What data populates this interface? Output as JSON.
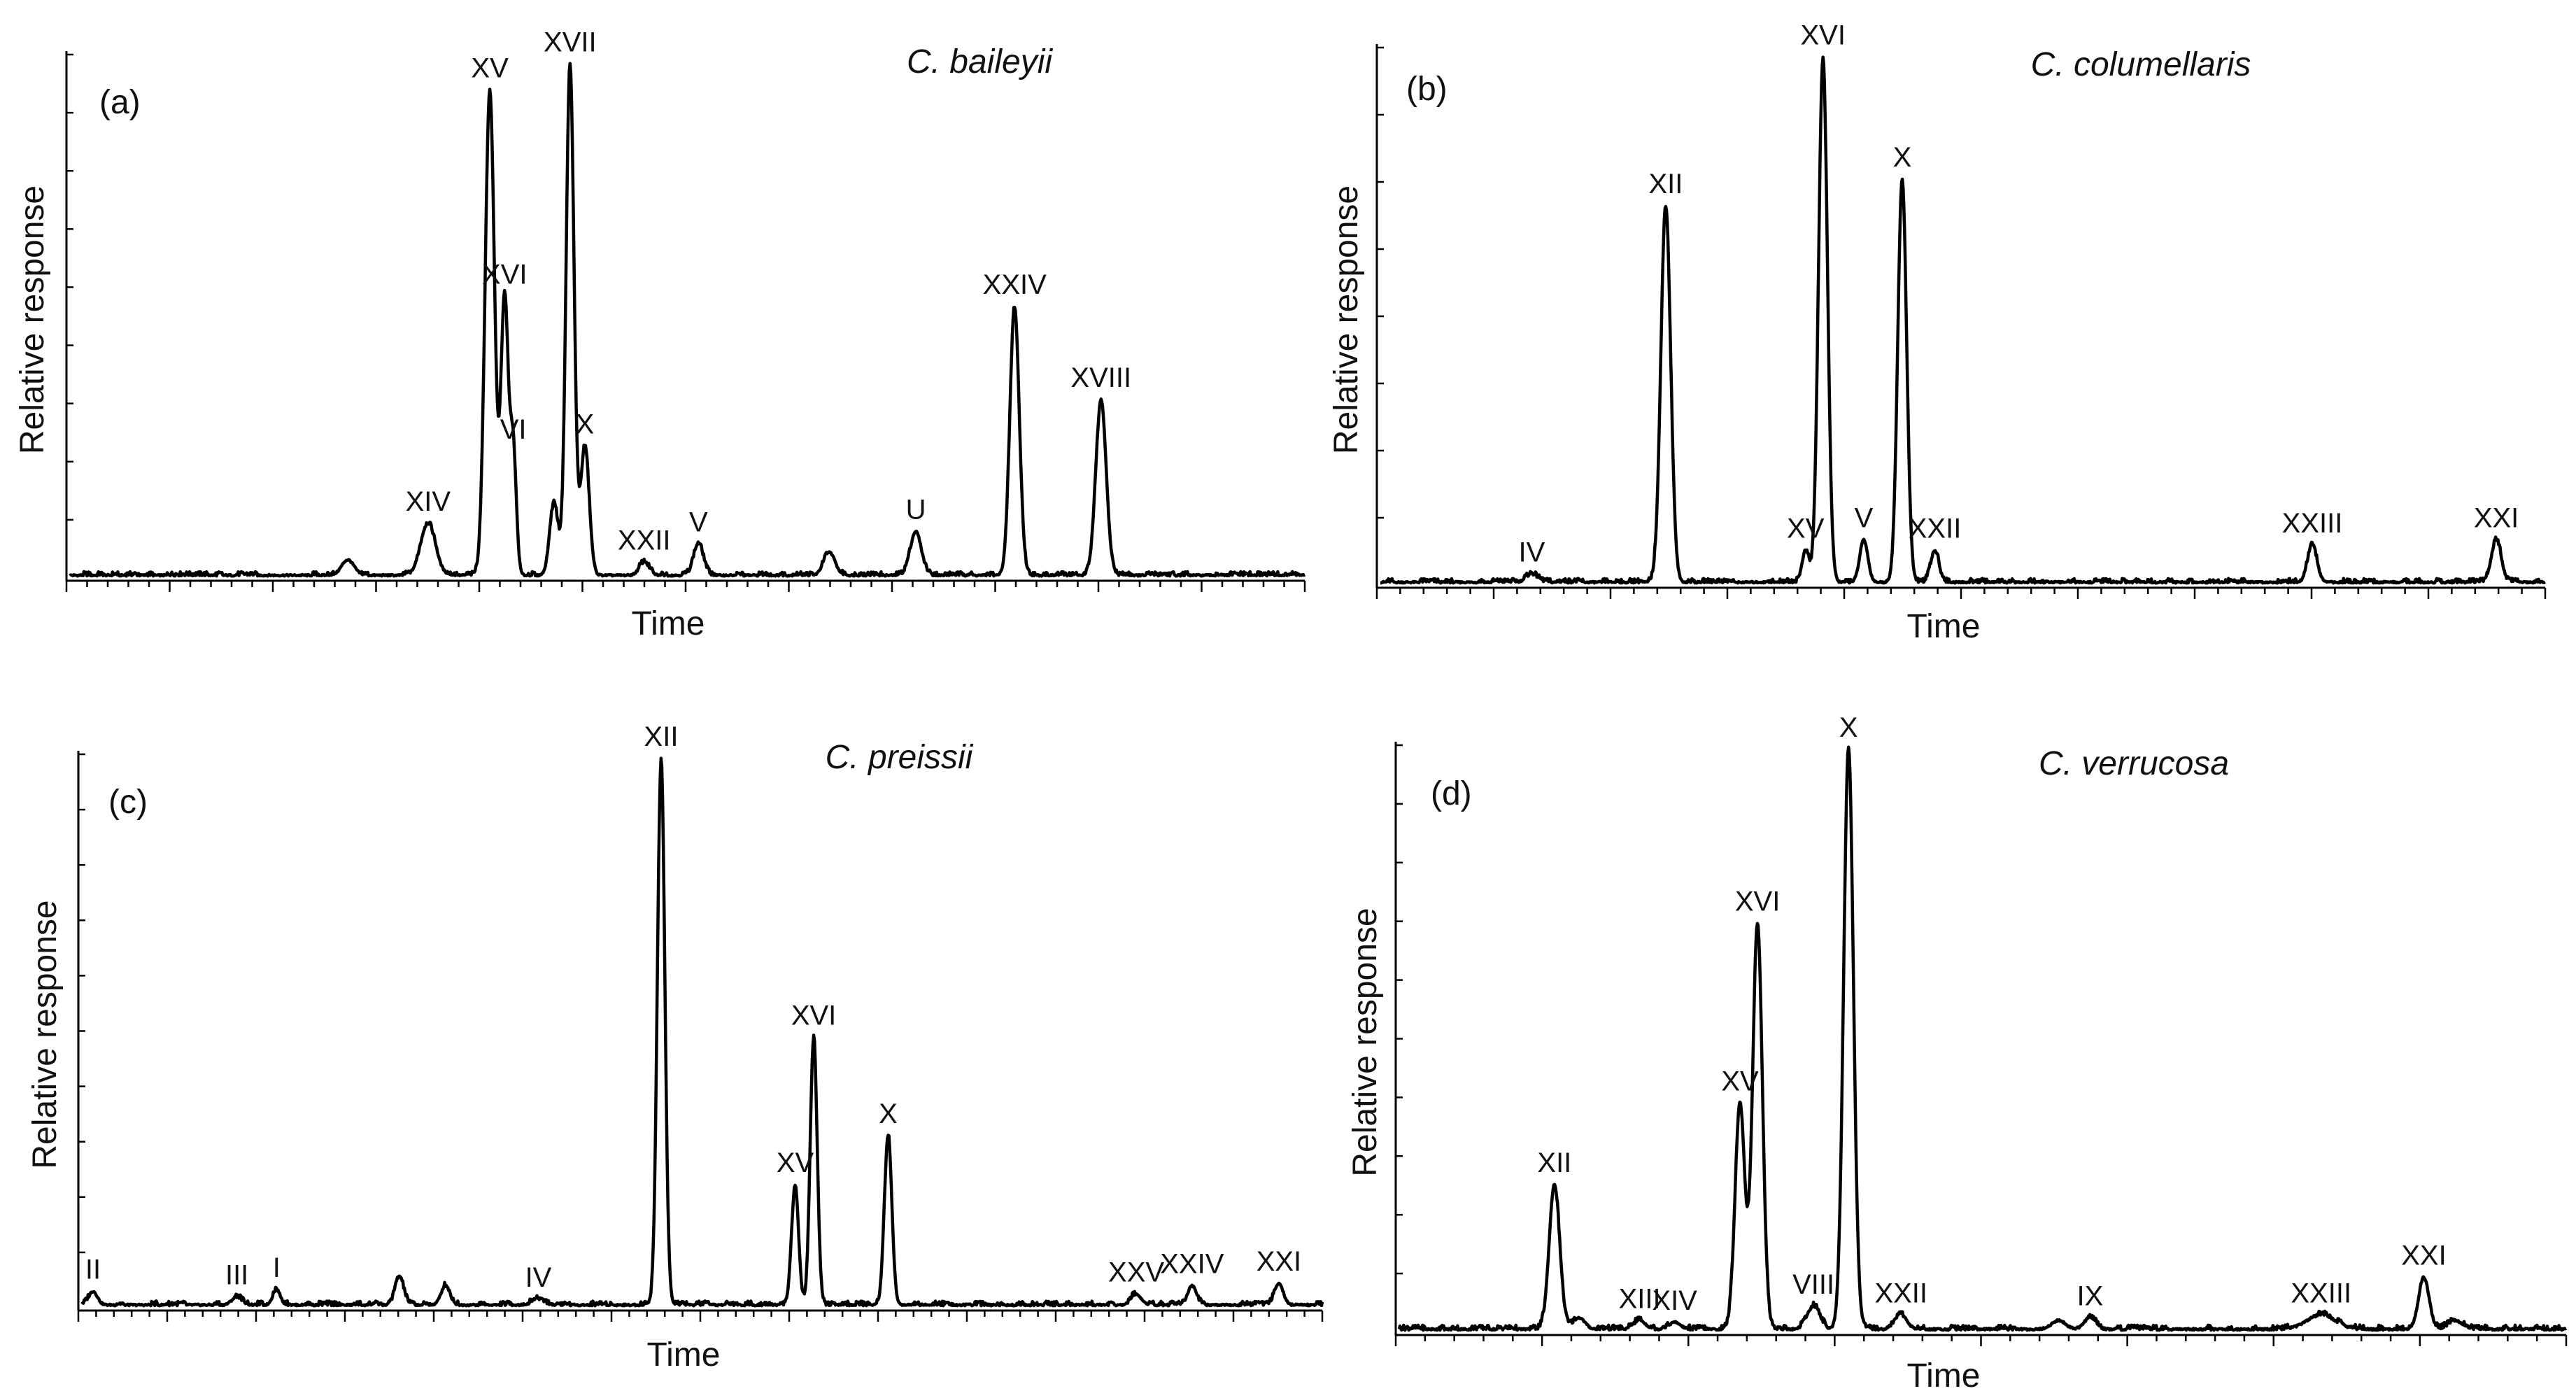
{
  "chart_data": [
    {
      "type": "line",
      "panel": "(a)",
      "title": "C. baileyii",
      "xlabel": "Time",
      "ylabel": "Relative response",
      "xlim": [
        0,
        100
      ],
      "ylim": [
        0,
        100
      ],
      "n_xticks": 60,
      "n_yticks": 9,
      "peaks": [
        {
          "x": 22.5,
          "y": 3,
          "w": 0.5,
          "label": ""
        },
        {
          "x": 29,
          "y": 10,
          "w": 0.6,
          "label": "XIV"
        },
        {
          "x": 34,
          "y": 94,
          "w": 0.38,
          "label": "XV"
        },
        {
          "x": 35.2,
          "y": 54,
          "w": 0.3,
          "label": "XVI"
        },
        {
          "x": 35.9,
          "y": 24,
          "w": 0.25,
          "label": "VI"
        },
        {
          "x": 39.2,
          "y": 14,
          "w": 0.35,
          "label": ""
        },
        {
          "x": 40.5,
          "y": 99,
          "w": 0.32,
          "label": "XVII"
        },
        {
          "x": 41.7,
          "y": 25,
          "w": 0.35,
          "label": "X"
        },
        {
          "x": 46.5,
          "y": 2.5,
          "w": 0.4,
          "label": "XXII"
        },
        {
          "x": 50.9,
          "y": 6,
          "w": 0.4,
          "label": "V"
        },
        {
          "x": 61.5,
          "y": 4.5,
          "w": 0.45,
          "label": ""
        },
        {
          "x": 68.5,
          "y": 8.5,
          "w": 0.45,
          "label": "U"
        },
        {
          "x": 76.5,
          "y": 52,
          "w": 0.38,
          "label": "XXIV"
        },
        {
          "x": 83.5,
          "y": 34,
          "w": 0.42,
          "label": "XVIII"
        }
      ]
    },
    {
      "type": "line",
      "panel": "(b)",
      "title": "C. columellaris",
      "xlabel": "Time",
      "ylabel": "Relative response",
      "xlim": [
        0,
        100
      ],
      "ylim": [
        0,
        100
      ],
      "n_xticks": 50,
      "n_yticks": 8,
      "peaks": [
        {
          "x": 13,
          "y": 1.5,
          "w": 0.5,
          "label": "IV"
        },
        {
          "x": 24.5,
          "y": 71,
          "w": 0.42,
          "label": "XII"
        },
        {
          "x": 36.5,
          "y": 6,
          "w": 0.3,
          "label": "XV"
        },
        {
          "x": 38,
          "y": 99,
          "w": 0.38,
          "label": "XVI"
        },
        {
          "x": 41.5,
          "y": 8,
          "w": 0.35,
          "label": "V"
        },
        {
          "x": 44.8,
          "y": 76,
          "w": 0.38,
          "label": "X"
        },
        {
          "x": 47.6,
          "y": 6,
          "w": 0.35,
          "label": "XXII"
        },
        {
          "x": 80,
          "y": 7,
          "w": 0.4,
          "label": "XXIII"
        },
        {
          "x": 95.8,
          "y": 8,
          "w": 0.42,
          "label": "XXI"
        }
      ]
    },
    {
      "type": "line",
      "panel": "(c)",
      "title": "C. preissii",
      "xlabel": "Time",
      "ylabel": "Relative response",
      "xlim": [
        0,
        100
      ],
      "ylim": [
        0,
        100
      ],
      "n_xticks": 70,
      "n_yticks": 10,
      "peaks": [
        {
          "x": 0.9,
          "y": 2.5,
          "w": 0.35,
          "label": "II"
        },
        {
          "x": 12.5,
          "y": 1.5,
          "w": 0.4,
          "label": "III"
        },
        {
          "x": 15.7,
          "y": 2.8,
          "w": 0.3,
          "label": "I"
        },
        {
          "x": 25.6,
          "y": 5,
          "w": 0.35,
          "label": ""
        },
        {
          "x": 29.3,
          "y": 3.5,
          "w": 0.35,
          "label": ""
        },
        {
          "x": 36.8,
          "y": 1,
          "w": 0.5,
          "label": "IV"
        },
        {
          "x": 46.7,
          "y": 100,
          "w": 0.3,
          "label": "XII"
        },
        {
          "x": 57.5,
          "y": 22,
          "w": 0.28,
          "label": "XV"
        },
        {
          "x": 59,
          "y": 49,
          "w": 0.28,
          "label": "XVI"
        },
        {
          "x": 65,
          "y": 31,
          "w": 0.3,
          "label": "X"
        },
        {
          "x": 85,
          "y": 2,
          "w": 0.4,
          "label": "XXV"
        },
        {
          "x": 89.5,
          "y": 3.5,
          "w": 0.35,
          "label": "XXIV"
        },
        {
          "x": 96.5,
          "y": 4,
          "w": 0.35,
          "label": "XXI"
        }
      ]
    },
    {
      "type": "line",
      "panel": "(d)",
      "title": "C. verrucosa",
      "xlabel": "Time",
      "ylabel": "Relative response",
      "xlim": [
        0,
        100
      ],
      "ylim": [
        0,
        100
      ],
      "n_xticks": 40,
      "n_yticks": 10,
      "peaks": [
        {
          "x": 13.3,
          "y": 25,
          "w": 0.45,
          "label": "XII"
        },
        {
          "x": 15.4,
          "y": 2,
          "w": 0.5,
          "label": ""
        },
        {
          "x": 20.6,
          "y": 1.5,
          "w": 0.5,
          "label": "XIII"
        },
        {
          "x": 23.6,
          "y": 1.2,
          "w": 0.5,
          "label": "XIV"
        },
        {
          "x": 29.2,
          "y": 39,
          "w": 0.42,
          "label": "XV"
        },
        {
          "x": 30.7,
          "y": 70,
          "w": 0.42,
          "label": "XVI"
        },
        {
          "x": 35.5,
          "y": 4,
          "w": 0.55,
          "label": "VIII"
        },
        {
          "x": 38.5,
          "y": 100,
          "w": 0.42,
          "label": "X"
        },
        {
          "x": 43,
          "y": 2.5,
          "w": 0.5,
          "label": "XXII"
        },
        {
          "x": 56.5,
          "y": 1.5,
          "w": 0.6,
          "label": ""
        },
        {
          "x": 59.2,
          "y": 2,
          "w": 0.5,
          "label": "IX"
        },
        {
          "x": 79,
          "y": 2.5,
          "w": 1.2,
          "label": "XXIII"
        },
        {
          "x": 87.8,
          "y": 9,
          "w": 0.45,
          "label": "XXI"
        },
        {
          "x": 90.5,
          "y": 1.5,
          "w": 0.6,
          "label": ""
        }
      ]
    }
  ]
}
